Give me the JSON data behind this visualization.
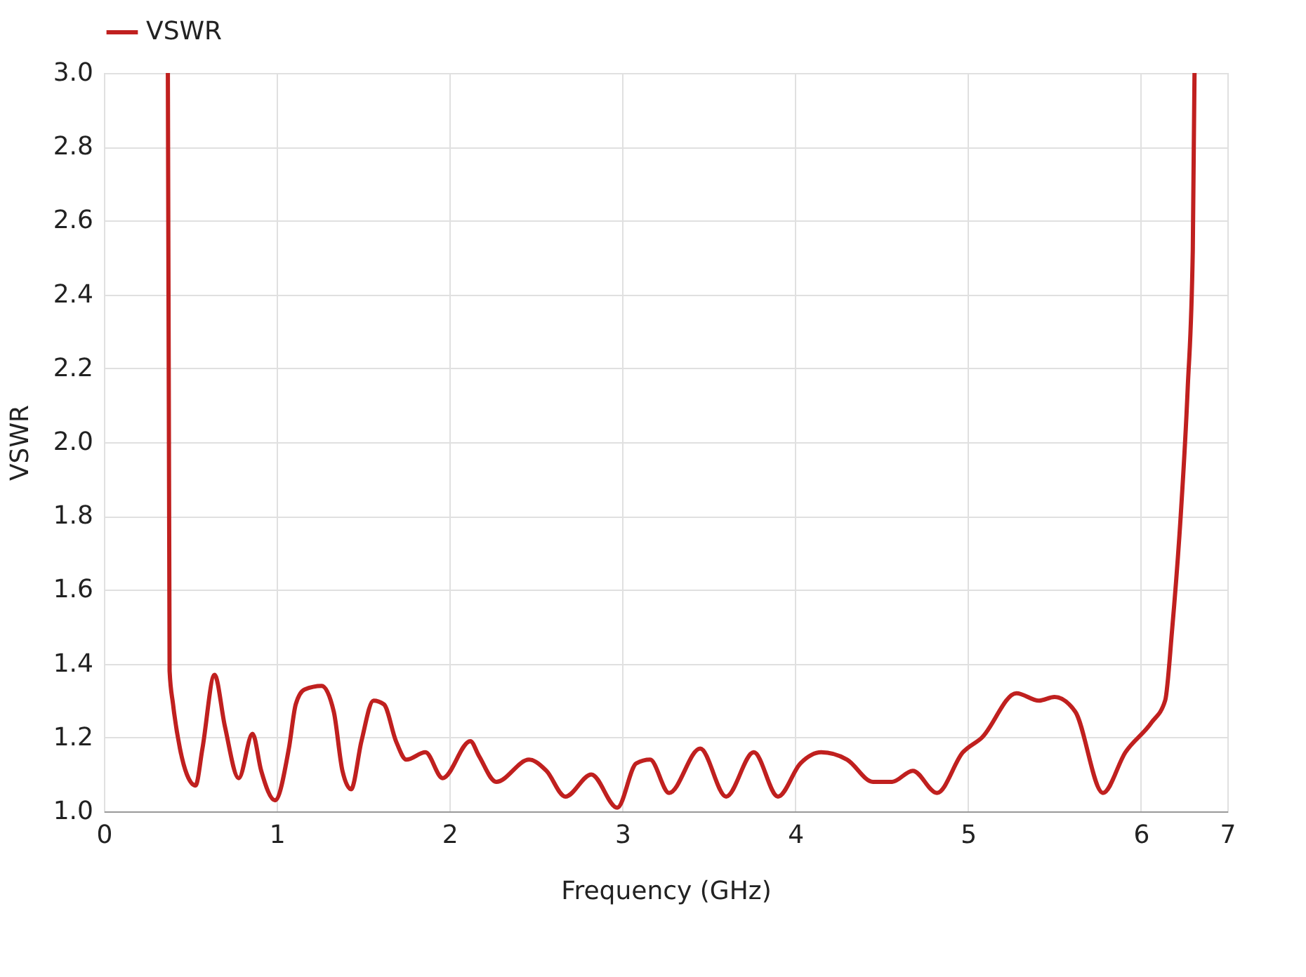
{
  "chart_data": {
    "type": "line",
    "xlabel": "Frequency (GHz)",
    "ylabel": "VSWR",
    "xlim": [
      0,
      6.5
    ],
    "xticks": [
      0,
      1,
      2,
      3,
      4,
      5,
      6,
      {
        "value": 6.5,
        "label": "7"
      }
    ],
    "ylim": [
      1.0,
      3.0
    ],
    "yticks": [
      {
        "value": 1.0,
        "label": "1.0"
      },
      1.2,
      1.4,
      1.6,
      1.8,
      {
        "value": 2.0,
        "label": "2.0"
      },
      2.2,
      2.4,
      2.6,
      2.8,
      {
        "value": 3.0,
        "label": "3.0"
      }
    ],
    "grid": true,
    "legend": "top",
    "marker": "none",
    "line_style": "solid",
    "series": [
      {
        "name": "VSWR",
        "color": "#c0201f",
        "x": [
          0.37,
          0.38,
          0.4,
          0.44,
          0.48,
          0.53,
          0.57,
          0.64,
          0.7,
          0.78,
          0.86,
          0.91,
          0.99,
          1.07,
          1.11,
          1.16,
          1.26,
          1.33,
          1.38,
          1.43,
          1.49,
          1.56,
          1.62,
          1.69,
          1.75,
          1.86,
          1.96,
          2.12,
          2.17,
          2.27,
          2.46,
          2.56,
          2.67,
          2.82,
          2.97,
          3.08,
          3.16,
          3.27,
          3.45,
          3.6,
          3.76,
          3.9,
          4.03,
          4.15,
          4.3,
          4.45,
          4.56,
          4.68,
          4.82,
          4.97,
          5.08,
          5.28,
          5.41,
          5.5,
          5.62,
          5.78,
          5.91,
          6.06,
          6.14,
          6.18,
          6.23,
          6.27,
          6.3,
          6.31
        ],
        "values": [
          3.0,
          1.38,
          1.29,
          1.17,
          1.1,
          1.07,
          1.17,
          1.37,
          1.23,
          1.09,
          1.21,
          1.11,
          1.03,
          1.17,
          1.29,
          1.33,
          1.34,
          1.27,
          1.11,
          1.06,
          1.19,
          1.3,
          1.29,
          1.19,
          1.14,
          1.16,
          1.09,
          1.19,
          1.15,
          1.08,
          1.14,
          1.11,
          1.04,
          1.1,
          1.01,
          1.13,
          1.14,
          1.05,
          1.17,
          1.04,
          1.16,
          1.04,
          1.13,
          1.16,
          1.14,
          1.08,
          1.08,
          1.11,
          1.05,
          1.16,
          1.2,
          1.32,
          1.3,
          1.31,
          1.27,
          1.05,
          1.16,
          1.24,
          1.3,
          1.49,
          1.8,
          2.14,
          2.52,
          3.0
        ]
      }
    ]
  }
}
